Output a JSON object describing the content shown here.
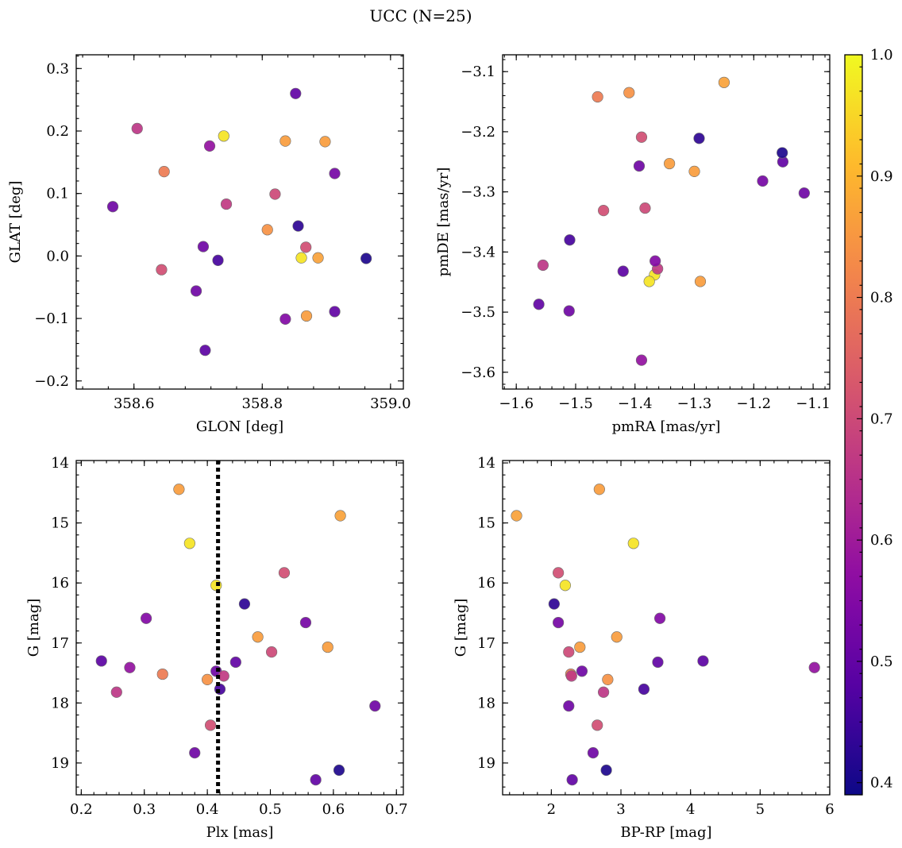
{
  "figure": {
    "title": "UCC (N=25)"
  },
  "colorbar": {
    "cmap": "plasma",
    "range": [
      0.39,
      1.0
    ],
    "ticks": [
      0.4,
      0.5,
      0.6,
      0.7,
      0.8,
      0.9,
      1.0
    ],
    "tick_labels": [
      "0.4",
      "0.5",
      "0.6",
      "0.7",
      "0.8",
      "0.9",
      "1.0"
    ]
  },
  "colors": {
    "vline": "#000000",
    "point_edge": "#6e6e6e"
  },
  "chart_data": [
    {
      "type": "scatter",
      "id": "glon_glat",
      "xlabel": "GLON [deg]",
      "ylabel": "GLAT [deg]",
      "xlim": [
        358.51,
        359.02
      ],
      "ylim": [
        -0.213,
        0.322
      ],
      "xticks": [
        358.6,
        358.8,
        359.0
      ],
      "xtick_labels": [
        "358.6",
        "358.8",
        "359.0"
      ],
      "yticks": [
        -0.2,
        -0.1,
        0.0,
        0.1,
        0.2,
        0.3
      ],
      "ytick_labels": [
        "−0.2",
        "−0.1",
        "0.0",
        "0.1",
        "0.2",
        "0.3"
      ],
      "x": [
        358.567,
        358.605,
        358.647,
        358.643,
        358.697,
        358.711,
        358.718,
        358.708,
        358.731,
        358.74,
        358.744,
        358.808,
        358.82,
        358.836,
        358.836,
        358.852,
        358.856,
        358.861,
        358.868,
        358.869,
        358.887,
        358.898,
        358.913,
        358.913,
        358.962
      ],
      "y": [
        0.079,
        0.204,
        0.135,
        -0.022,
        -0.056,
        -0.151,
        0.176,
        0.015,
        -0.007,
        0.192,
        0.083,
        0.042,
        0.099,
        0.184,
        -0.101,
        0.26,
        0.048,
        -0.003,
        0.014,
        -0.096,
        -0.003,
        0.183,
        0.132,
        -0.089,
        -0.004
      ]
    },
    {
      "type": "scatter",
      "id": "pm",
      "xlabel": "pmRA [mas/yr]",
      "ylabel": "pmDE [mas/yr]",
      "xlim": [
        -1.623,
        -1.072
      ],
      "ylim": [
        -3.628,
        -3.072
      ],
      "xticks": [
        -1.6,
        -1.5,
        -1.4,
        -1.3,
        -1.2,
        -1.1
      ],
      "xtick_labels": [
        "−1.6",
        "−1.5",
        "−1.4",
        "−1.3",
        "−1.2",
        "−1.1"
      ],
      "yticks": [
        -3.6,
        -3.5,
        -3.4,
        -3.3,
        -3.2,
        -3.1
      ],
      "ytick_labels": [
        "−3.6",
        "−3.5",
        "−3.4",
        "−3.3",
        "−3.2",
        "−3.1"
      ],
      "x": [
        -1.115,
        -1.555,
        -1.463,
        -1.453,
        -1.511,
        -1.42,
        -1.389,
        -1.393,
        -1.51,
        -1.367,
        -1.362,
        -1.41,
        -1.383,
        -1.342,
        -1.366,
        -1.151,
        -1.292,
        -1.376,
        -1.389,
        -1.29,
        -1.25,
        -1.3,
        -1.185,
        -1.562,
        -1.152
      ],
      "y": [
        -3.302,
        -3.422,
        -3.142,
        -3.331,
        -3.498,
        -3.432,
        -3.58,
        -3.257,
        -3.38,
        -3.438,
        -3.428,
        -3.135,
        -3.327,
        -3.253,
        -3.415,
        -3.25,
        -3.211,
        -3.449,
        -3.209,
        -3.449,
        -3.118,
        -3.266,
        -3.282,
        -3.487,
        -3.235
      ]
    },
    {
      "type": "scatter",
      "id": "plx_g",
      "xlabel": "Plx [mas]",
      "ylabel": "G [mag]",
      "xlim": [
        0.192,
        0.711
      ],
      "ylim": [
        19.53,
        13.96
      ],
      "xticks": [
        0.2,
        0.3,
        0.4,
        0.5,
        0.6,
        0.7
      ],
      "xtick_labels": [
        "0.2",
        "0.3",
        "0.4",
        "0.5",
        "0.6",
        "0.7"
      ],
      "yticks": [
        14,
        15,
        16,
        17,
        18,
        19
      ],
      "ytick_labels": [
        "14",
        "15",
        "16",
        "17",
        "18",
        "19"
      ],
      "vline": {
        "x": 0.417,
        "style": "dotted"
      },
      "x": [
        0.666,
        0.256,
        0.329,
        0.405,
        0.38,
        0.232,
        0.277,
        0.414,
        0.42,
        0.414,
        0.426,
        0.4,
        0.502,
        0.48,
        0.303,
        0.445,
        0.459,
        0.372,
        0.522,
        0.355,
        0.611,
        0.591,
        0.556,
        0.572,
        0.609
      ],
      "y": [
        18.05,
        17.82,
        17.52,
        18.37,
        18.83,
        17.3,
        17.41,
        17.47,
        17.77,
        16.04,
        17.55,
        17.61,
        17.15,
        16.9,
        16.59,
        17.32,
        16.35,
        15.34,
        15.83,
        14.44,
        14.88,
        17.07,
        16.66,
        19.28,
        19.12
      ]
    },
    {
      "type": "scatter",
      "id": "bprp_g",
      "xlabel": "BP-RP [mag]",
      "ylabel": "G [mag]",
      "xlim": [
        1.3,
        6.0
      ],
      "ylim": [
        19.53,
        13.96
      ],
      "xticks": [
        2,
        3,
        4,
        5,
        6
      ],
      "xtick_labels": [
        "2",
        "3",
        "4",
        "5",
        "6"
      ],
      "yticks": [
        14,
        15,
        16,
        17,
        18,
        19
      ],
      "ytick_labels": [
        "14",
        "15",
        "16",
        "17",
        "18",
        "19"
      ],
      "x": [
        2.25,
        2.75,
        2.28,
        2.66,
        2.6,
        4.18,
        5.78,
        2.44,
        3.33,
        2.2,
        2.29,
        2.81,
        2.25,
        2.94,
        3.56,
        3.53,
        2.04,
        3.18,
        2.1,
        2.69,
        1.5,
        2.41,
        2.1,
        2.3,
        2.79
      ],
      "y": [
        18.05,
        17.82,
        17.52,
        18.37,
        18.83,
        17.3,
        17.41,
        17.47,
        17.77,
        16.04,
        17.55,
        17.61,
        17.15,
        16.9,
        16.59,
        17.32,
        16.35,
        15.34,
        15.83,
        14.44,
        14.88,
        17.07,
        16.66,
        19.28,
        19.12
      ]
    }
  ],
  "point_color_values": [
    0.52,
    0.66,
    0.8,
    0.71,
    0.52,
    0.49,
    0.58,
    0.52,
    0.46,
    0.97,
    0.67,
    0.84,
    0.7,
    0.86,
    0.55,
    0.5,
    0.43,
    0.97,
    0.71,
    0.86,
    0.87,
    0.86,
    0.53,
    0.5,
    0.41
  ]
}
